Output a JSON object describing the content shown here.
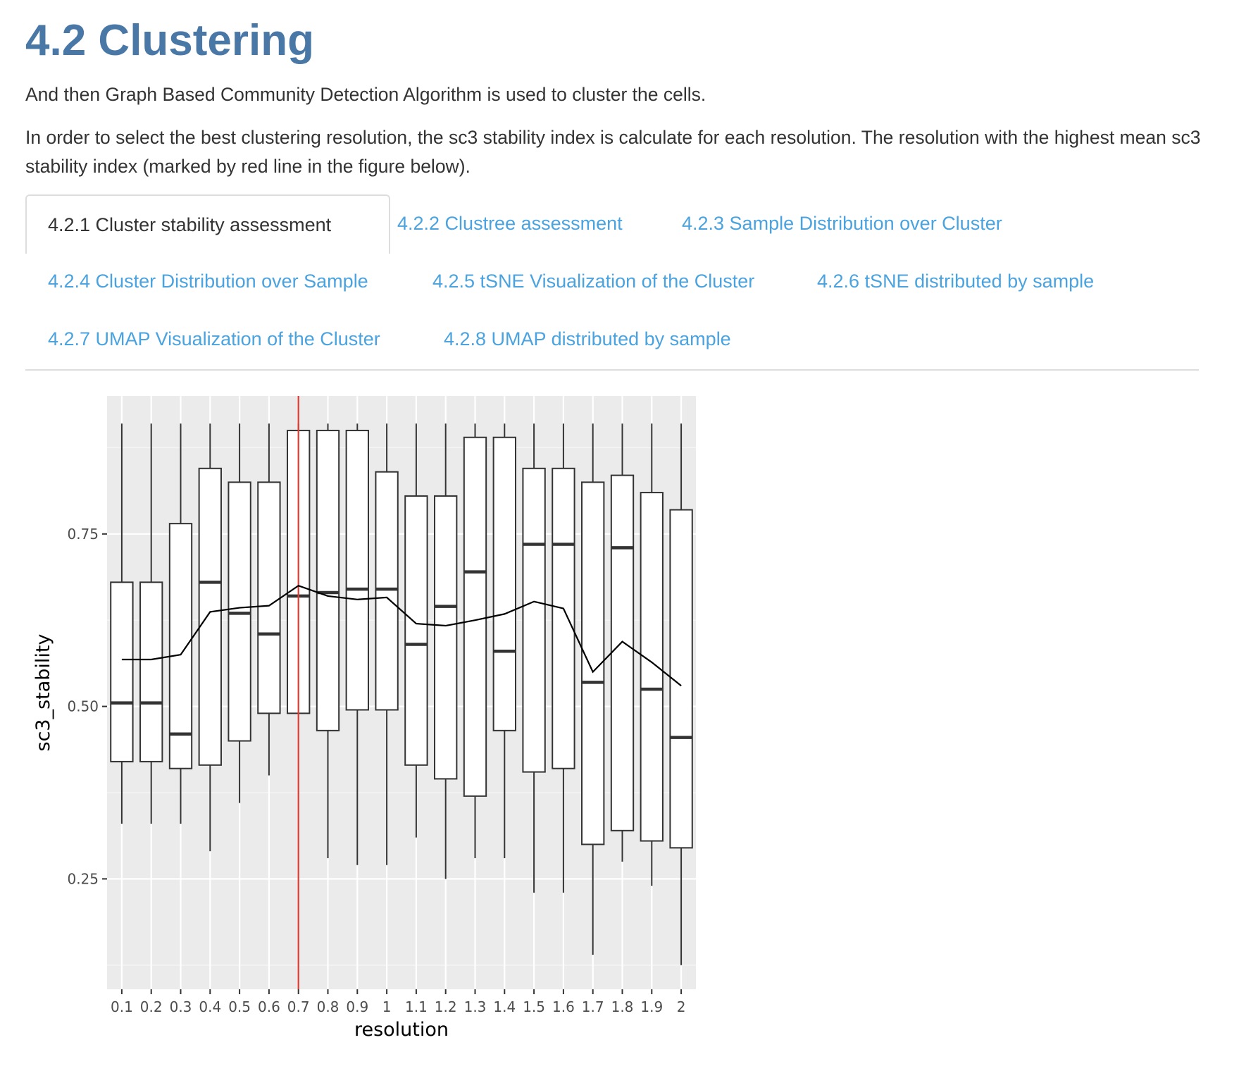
{
  "section": {
    "title": "4.2 Clustering",
    "para1": "And then Graph Based Community Detection Algorithm is used to cluster the cells.",
    "para2": "In order to select the best clustering resolution, the sc3 stability index is calculate for each resolution. The resolution with the highest mean sc3 stability index (marked by red line in the figure below)."
  },
  "tabs": [
    {
      "label": "4.2.1 Cluster stability assessment",
      "active": true
    },
    {
      "label": "4.2.2 Clustree assessment",
      "active": false
    },
    {
      "label": "4.2.3 Sample Distribution over Cluster",
      "active": false
    },
    {
      "label": "4.2.4 Cluster Distribution over Sample",
      "active": false
    },
    {
      "label": "4.2.5 tSNE Visualization of the Cluster",
      "active": false
    },
    {
      "label": "4.2.6 tSNE distributed by sample",
      "active": false
    },
    {
      "label": "4.2.7 UMAP Visualization of the Cluster",
      "active": false
    },
    {
      "label": "4.2.8 UMAP distributed by sample",
      "active": false
    }
  ],
  "chart_data": {
    "type": "box",
    "xlabel": "resolution",
    "ylabel": "sc3_stability",
    "ylim": [
      0.09,
      0.95
    ],
    "yticks": [
      0.25,
      0.5,
      0.75
    ],
    "ytick_labels": [
      "0.25",
      "0.50",
      "0.75"
    ],
    "grid": true,
    "background_color": "#ebebeb",
    "highlight_resolution": "0.7",
    "highlight_color": "#e03c31",
    "categories": [
      "0.1",
      "0.2",
      "0.3",
      "0.4",
      "0.5",
      "0.6",
      "0.7",
      "0.8",
      "0.9",
      "1",
      "1.1",
      "1.2",
      "1.3",
      "1.4",
      "1.5",
      "1.6",
      "1.7",
      "1.8",
      "1.9",
      "2"
    ],
    "boxes": [
      {
        "lower": 0.33,
        "q1": 0.42,
        "median": 0.505,
        "q3": 0.68,
        "upper": 0.91
      },
      {
        "lower": 0.33,
        "q1": 0.42,
        "median": 0.505,
        "q3": 0.68,
        "upper": 0.91
      },
      {
        "lower": 0.33,
        "q1": 0.41,
        "median": 0.46,
        "q3": 0.765,
        "upper": 0.91
      },
      {
        "lower": 0.29,
        "q1": 0.415,
        "median": 0.68,
        "q3": 0.845,
        "upper": 0.91
      },
      {
        "lower": 0.36,
        "q1": 0.45,
        "median": 0.635,
        "q3": 0.825,
        "upper": 0.91
      },
      {
        "lower": 0.4,
        "q1": 0.49,
        "median": 0.605,
        "q3": 0.825,
        "upper": 0.91
      },
      {
        "lower": 0.49,
        "q1": 0.49,
        "median": 0.66,
        "q3": 0.9,
        "upper": 0.91
      },
      {
        "lower": 0.28,
        "q1": 0.465,
        "median": 0.665,
        "q3": 0.9,
        "upper": 0.91
      },
      {
        "lower": 0.27,
        "q1": 0.495,
        "median": 0.67,
        "q3": 0.9,
        "upper": 0.91
      },
      {
        "lower": 0.27,
        "q1": 0.495,
        "median": 0.67,
        "q3": 0.84,
        "upper": 0.91
      },
      {
        "lower": 0.31,
        "q1": 0.415,
        "median": 0.59,
        "q3": 0.805,
        "upper": 0.91
      },
      {
        "lower": 0.25,
        "q1": 0.395,
        "median": 0.645,
        "q3": 0.805,
        "upper": 0.91
      },
      {
        "lower": 0.28,
        "q1": 0.37,
        "median": 0.695,
        "q3": 0.89,
        "upper": 0.91
      },
      {
        "lower": 0.28,
        "q1": 0.465,
        "median": 0.58,
        "q3": 0.89,
        "upper": 0.91
      },
      {
        "lower": 0.23,
        "q1": 0.405,
        "median": 0.735,
        "q3": 0.845,
        "upper": 0.91
      },
      {
        "lower": 0.23,
        "q1": 0.41,
        "median": 0.735,
        "q3": 0.845,
        "upper": 0.91
      },
      {
        "lower": 0.14,
        "q1": 0.3,
        "median": 0.535,
        "q3": 0.825,
        "upper": 0.91
      },
      {
        "lower": 0.275,
        "q1": 0.32,
        "median": 0.73,
        "q3": 0.835,
        "upper": 0.91
      },
      {
        "lower": 0.24,
        "q1": 0.305,
        "median": 0.525,
        "q3": 0.81,
        "upper": 0.91
      },
      {
        "lower": 0.125,
        "q1": 0.295,
        "median": 0.455,
        "q3": 0.785,
        "upper": 0.91
      }
    ],
    "mean_line": [
      0.568,
      0.568,
      0.575,
      0.637,
      0.643,
      0.646,
      0.675,
      0.66,
      0.655,
      0.658,
      0.62,
      0.617,
      0.625,
      0.634,
      0.652,
      0.642,
      0.55,
      0.594,
      0.564,
      0.53
    ]
  }
}
